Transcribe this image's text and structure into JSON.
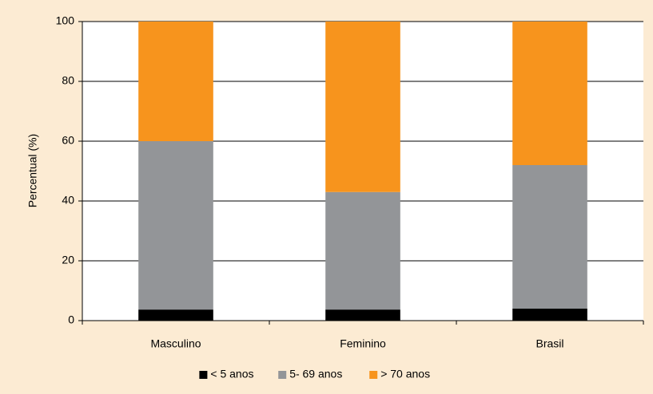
{
  "chart_data": {
    "type": "stacked_bar",
    "y_label": "Percentual (%)",
    "categories": [
      "Masculino",
      "Feminino",
      "Brasil"
    ],
    "series": [
      {
        "name": "< 5 anos",
        "color": "#000000",
        "values": [
          3.7,
          3.7,
          4
        ]
      },
      {
        "name": "5- 69 anos",
        "color": "#939598",
        "values": [
          56.3,
          39.3,
          48
        ]
      },
      {
        "name": "> 70 anos",
        "color": "#f7941d",
        "values": [
          40,
          57,
          48
        ]
      }
    ],
    "ylim": [
      0,
      100
    ],
    "yticks": [
      0,
      20,
      40,
      60,
      80,
      100
    ],
    "grid": true,
    "legend": "bottom"
  }
}
